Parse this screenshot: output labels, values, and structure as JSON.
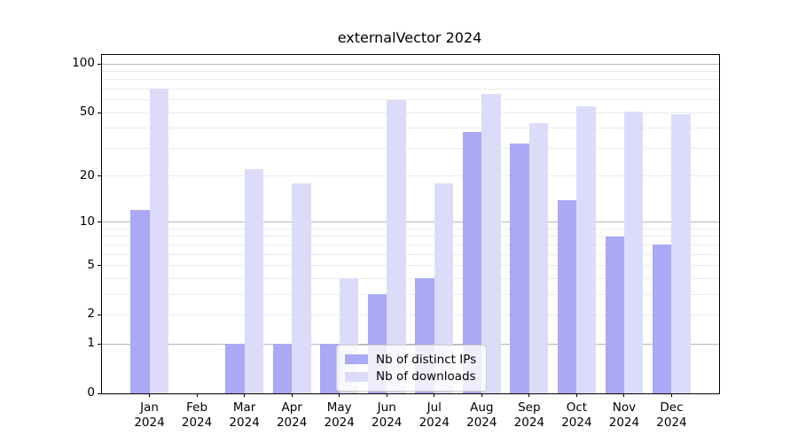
{
  "chart_data": {
    "type": "bar",
    "title": "externalVector 2024",
    "categories": [
      "Jan 2024",
      "Feb 2024",
      "Mar 2024",
      "Apr 2024",
      "May 2024",
      "Jun 2024",
      "Jul 2024",
      "Aug 2024",
      "Sep 2024",
      "Oct 2024",
      "Nov 2024",
      "Dec 2024"
    ],
    "series": [
      {
        "name": "Nb of distinct IPs",
        "color": "#a9a9f5",
        "values": [
          12,
          0,
          1,
          1,
          1,
          3,
          4,
          38,
          32,
          14,
          8,
          7
        ]
      },
      {
        "name": "Nb of downloads",
        "color": "#dcdcfa",
        "values": [
          70,
          0,
          22,
          18,
          4,
          60,
          18,
          65,
          43,
          55,
          51,
          49
        ]
      }
    ],
    "xlabel": "",
    "ylabel": "",
    "yscale": "log1p",
    "ylim": [
      0,
      113
    ],
    "yticks": [
      0,
      1,
      2,
      5,
      10,
      20,
      50,
      100
    ],
    "grid": true,
    "grid_major_values": [
      1,
      10,
      100
    ],
    "grid_minor_values": [
      2,
      3,
      4,
      5,
      6,
      7,
      8,
      9,
      20,
      30,
      40,
      50,
      60,
      70,
      80,
      90
    ],
    "legend_position": "lower center",
    "legend_labels": [
      "Nb of distinct IPs",
      "Nb of downloads"
    ],
    "colors": {
      "bar_distinct_ips": "#a9a9f5",
      "bar_downloads": "#dcdcfa",
      "grid_major": "#b4b4b4",
      "grid_minor": "#ebebeb",
      "spine": "#000000",
      "text": "#000000"
    }
  }
}
